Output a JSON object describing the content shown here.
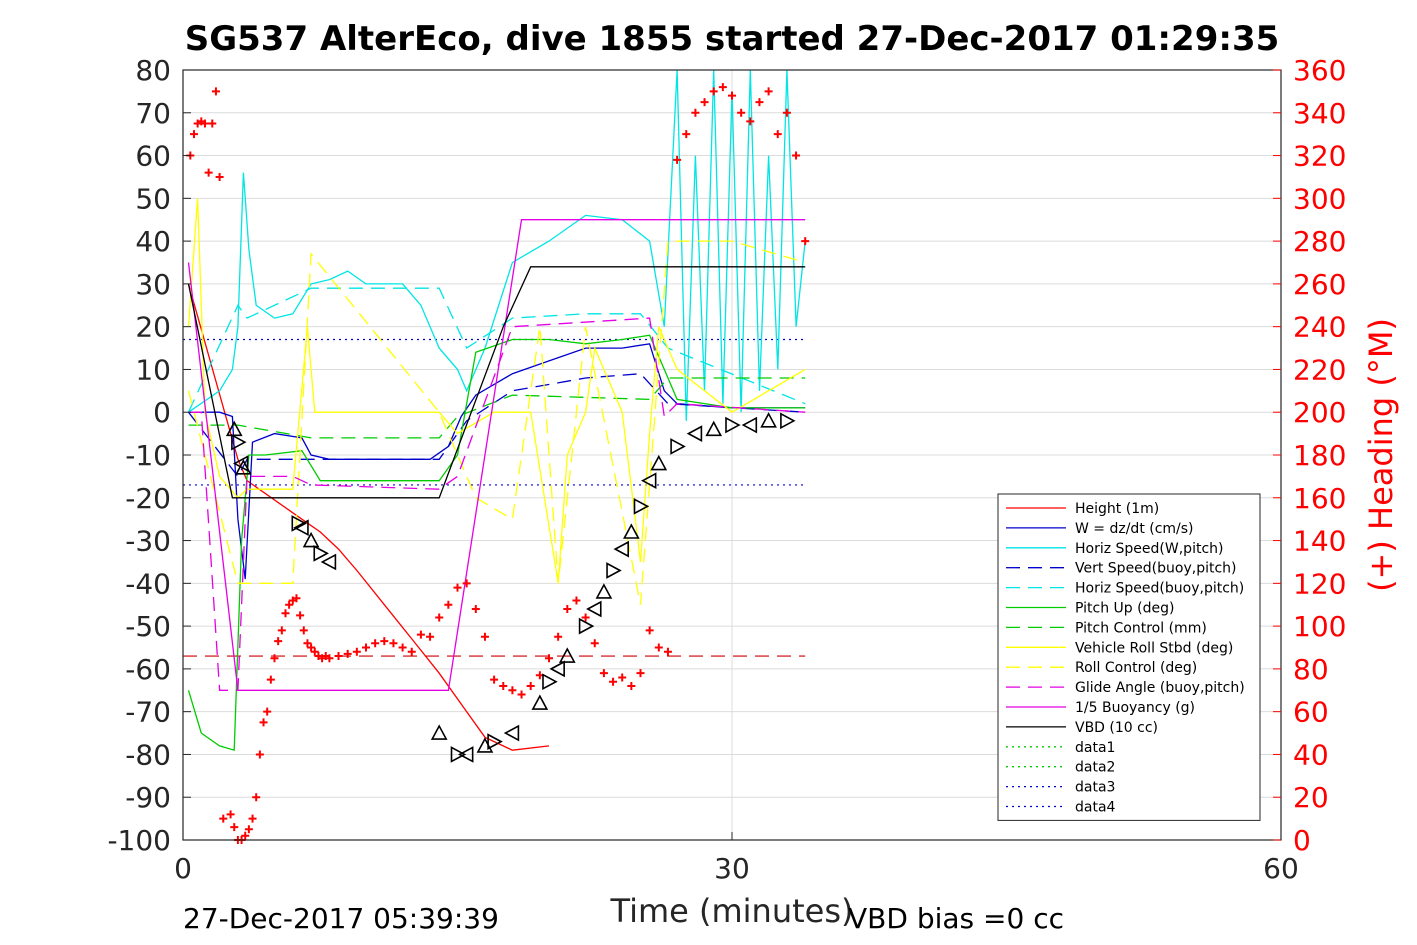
{
  "title": "SG537 AlterEco, dive 1855 started 27-Dec-2017 01:29:35",
  "footer_left": "27-Dec-2017 05:39:39",
  "footer_right": "VBD bias =0 cc",
  "chart_data": {
    "type": "line",
    "xlabel": "Time (minutes)",
    "ylabel_right": "(+) Heading (°M)",
    "xlim": [
      0,
      60
    ],
    "ylim_left": [
      -100,
      80
    ],
    "ylim_right": [
      0,
      360
    ],
    "x_ticks": [
      0,
      30,
      60
    ],
    "y_ticks_left": [
      80,
      70,
      60,
      50,
      40,
      30,
      20,
      10,
      0,
      -10,
      -20,
      -30,
      -40,
      -50,
      -60,
      -70,
      -80,
      -90,
      -100
    ],
    "y_ticks_right": [
      360,
      340,
      320,
      300,
      280,
      260,
      240,
      220,
      200,
      180,
      160,
      140,
      120,
      100,
      80,
      60,
      40,
      20,
      0
    ],
    "grid": true,
    "legend_position": "lower-right",
    "legend": [
      {
        "label": "Height (1m)",
        "color": "#ff0000",
        "style": "solid"
      },
      {
        "label": "W = dz/dt (cm/s)",
        "color": "#0000cc",
        "style": "solid"
      },
      {
        "label": "Horiz Speed(W,pitch)",
        "color": "#00e5e5",
        "style": "solid"
      },
      {
        "label": "Vert Speed(buoy,pitch)",
        "color": "#0000cc",
        "style": "dashed"
      },
      {
        "label": "Horiz Speed(buoy,pitch)",
        "color": "#00e5e5",
        "style": "dashed"
      },
      {
        "label": "Pitch Up (deg)",
        "color": "#00cc00",
        "style": "solid"
      },
      {
        "label": "Pitch Control (mm)",
        "color": "#00cc00",
        "style": "dashed"
      },
      {
        "label": "Vehicle Roll Stbd (deg)",
        "color": "#ffff00",
        "style": "solid"
      },
      {
        "label": "Roll Control (deg)",
        "color": "#ffff00",
        "style": "dashed"
      },
      {
        "label": "Glide Angle (buoy,pitch)",
        "color": "#e500e5",
        "style": "dashed"
      },
      {
        "label": "1/5 Buoyancy (g)",
        "color": "#e500e5",
        "style": "solid"
      },
      {
        "label": "VBD (10 cc)",
        "color": "#000000",
        "style": "solid"
      },
      {
        "label": "data1",
        "color": "#00cc00",
        "style": "dotted"
      },
      {
        "label": "data2",
        "color": "#00cc00",
        "style": "dotted"
      },
      {
        "label": "data3",
        "color": "#0000cc",
        "style": "dotted"
      },
      {
        "label": "data4",
        "color": "#0000cc",
        "style": "dotted"
      }
    ],
    "series": [
      {
        "name": "Height (1m)",
        "color": "#ff0000",
        "style": "solid",
        "x": [
          0.3,
          3.0,
          3.5,
          6.5,
          7.5,
          8.5,
          9.5,
          11,
          12.5,
          14,
          15.5,
          16.5,
          18,
          20
        ],
        "y": [
          30,
          -11,
          -16,
          -25,
          -28,
          -32,
          -37,
          -45,
          -53,
          -61,
          -70,
          -76,
          -79,
          -78
        ]
      },
      {
        "name": "W = dz/dt (cm/s)",
        "color": "#0000cc",
        "style": "solid",
        "x": [
          0.3,
          2.0,
          2.7,
          3.0,
          3.4,
          3.8,
          5.0,
          6.5,
          7.0,
          8.0,
          10,
          12,
          13.5,
          14.5,
          15.2,
          16,
          18,
          20,
          22,
          24,
          25.5,
          26.3,
          27,
          30,
          34
        ],
        "y": [
          0,
          0,
          -1,
          -25,
          -39,
          -7,
          -5,
          -6,
          -10,
          -11,
          -11,
          -11,
          -11,
          -8,
          -1,
          4,
          9,
          12,
          15,
          15,
          16,
          5,
          2,
          1,
          1
        ]
      },
      {
        "name": "Horiz Speed(W,pitch)",
        "color": "#00e5e5",
        "style": "solid",
        "x": [
          0.3,
          2.0,
          2.7,
          3.0,
          3.3,
          3.6,
          4.0,
          5.0,
          6.0,
          7.0,
          8.0,
          9.0,
          10,
          11,
          12,
          13,
          14,
          15,
          15.5,
          16.5,
          18,
          20,
          22,
          24,
          25.5,
          26.3,
          27,
          27.5,
          28,
          28.5,
          29,
          29.5,
          30,
          30.5,
          31,
          31.5,
          32,
          32.5,
          33,
          33.5,
          34
        ],
        "y": [
          0,
          5,
          10,
          20,
          56,
          38,
          25,
          22,
          23,
          30,
          31,
          33,
          30,
          30,
          30,
          25,
          15,
          10,
          5,
          15,
          35,
          40,
          46,
          45,
          40,
          20,
          80,
          -2,
          60,
          5,
          80,
          2,
          75,
          0,
          80,
          5,
          60,
          10,
          80,
          20,
          40
        ]
      },
      {
        "name": "Vert Speed(buoy,pitch)",
        "color": "#0000cc",
        "style": "dashed",
        "x": [
          0.3,
          3.0,
          3.5,
          7.0,
          14,
          15.5,
          18,
          22,
          25,
          26.5,
          34
        ],
        "y": [
          0,
          -15,
          -11,
          -11,
          -11,
          -2,
          5,
          8,
          9,
          2,
          0
        ]
      },
      {
        "name": "Horiz Speed(buoy,pitch)",
        "color": "#00e5e5",
        "style": "dashed",
        "x": [
          0.3,
          3.0,
          3.5,
          7.0,
          14,
          15.5,
          18,
          22,
          25,
          26.5,
          34
        ],
        "y": [
          0,
          25,
          22,
          29,
          29,
          15,
          22,
          23,
          23,
          15,
          2
        ]
      },
      {
        "name": "Pitch Up (deg)",
        "color": "#00cc00",
        "style": "solid",
        "x": [
          0.3,
          1.0,
          2.0,
          2.8,
          3.2,
          3.6,
          4.5,
          6.5,
          7.5,
          10,
          14,
          15,
          16,
          18,
          20,
          22,
          24,
          25.5,
          26.3,
          27,
          30,
          34
        ],
        "y": [
          -65,
          -75,
          -78,
          -79,
          -30,
          -10,
          -10,
          -9,
          -16,
          -16,
          -16,
          -10,
          14,
          17,
          17,
          16,
          17,
          18,
          10,
          3,
          1,
          1
        ]
      },
      {
        "name": "Pitch Control (mm)",
        "color": "#00cc00",
        "style": "dashed",
        "x": [
          0.3,
          3.0,
          7.0,
          14,
          15,
          18,
          25.5,
          26.5,
          34
        ],
        "y": [
          -3,
          -3,
          -6,
          -6,
          -1,
          4,
          3,
          8,
          8
        ]
      },
      {
        "name": "Vehicle Roll Stbd (deg)",
        "color": "#ffff00",
        "style": "solid",
        "x": [
          0.3,
          0.8,
          1.2,
          2.0,
          3.0,
          3.5,
          6.0,
          6.8,
          7.2,
          8.0,
          10,
          14,
          15,
          17,
          19,
          20.5,
          21,
          22,
          22.5,
          24,
          25,
          25.5,
          26,
          27,
          30,
          34
        ],
        "y": [
          20,
          50,
          0,
          -15,
          -20,
          -18,
          -18,
          20,
          0,
          0,
          0,
          0,
          -5,
          0,
          0,
          -40,
          -10,
          0,
          15,
          0,
          -35,
          -5,
          20,
          10,
          0,
          10
        ]
      },
      {
        "name": "Roll Control (deg)",
        "color": "#ffff00",
        "style": "dashed",
        "x": [
          0.3,
          3.0,
          4.0,
          6.0,
          7.0,
          14,
          16,
          18,
          19.5,
          20.5,
          22,
          25,
          26.5,
          27,
          30,
          34
        ],
        "y": [
          5,
          -40,
          -40,
          -40,
          37,
          0,
          -20,
          -25,
          20,
          -40,
          20,
          -45,
          40,
          40,
          40,
          35
        ]
      },
      {
        "name": "Glide Angle (buoy,pitch)",
        "color": "#e500e5",
        "style": "dashed",
        "x": [
          0.3,
          1.0,
          2.0,
          3.0,
          3.5,
          6.0,
          7.0,
          14,
          15,
          18,
          25.5,
          26.3,
          27,
          34
        ],
        "y": [
          0,
          0,
          -65,
          -65,
          -15,
          -15,
          -17,
          -18,
          -15,
          20,
          22,
          -1,
          2,
          0
        ]
      },
      {
        "name": "1/5 Buoyancy (g)",
        "color": "#e500e5",
        "style": "solid",
        "x": [
          0.3,
          3.0,
          13,
          14.5,
          18.5,
          34
        ],
        "y": [
          35,
          -65,
          -65,
          -65,
          45,
          45
        ]
      },
      {
        "name": "VBD (10 cc)",
        "color": "#000000",
        "style": "solid",
        "x": [
          0.3,
          2.7,
          14,
          17.5,
          19,
          34
        ],
        "y": [
          30,
          -20,
          -20,
          20,
          34,
          34
        ]
      }
    ],
    "reference_lines": [
      {
        "axis": "y",
        "value": 17,
        "color": "#0000cc",
        "style": "dotted"
      },
      {
        "axis": "y",
        "value": -17,
        "color": "#0000cc",
        "style": "dotted"
      },
      {
        "axis": "y",
        "value": -57,
        "color": "#cc0000",
        "style": "dashed"
      }
    ],
    "heading_points": {
      "axis": "right",
      "color": "#ff0000",
      "marker": "+",
      "x": [
        0.4,
        0.6,
        0.8,
        1.0,
        1.2,
        1.4,
        1.6,
        1.8,
        2.0,
        2.2,
        2.6,
        2.8,
        3.0,
        3.2,
        3.4,
        3.6,
        3.8,
        4.0,
        4.2,
        4.4,
        4.6,
        4.8,
        5.0,
        5.2,
        5.4,
        5.6,
        5.8,
        6.0,
        6.2,
        6.4,
        6.6,
        6.8,
        7.0,
        7.2,
        7.4,
        7.6,
        7.8,
        8.0,
        8.5,
        9.0,
        9.5,
        10,
        10.5,
        11,
        11.5,
        12,
        12.5,
        13,
        13.5,
        14,
        14.5,
        15,
        15.5,
        16,
        16.5,
        17,
        17.5,
        18,
        18.5,
        19,
        19.5,
        20,
        20.5,
        21,
        21.5,
        22,
        22.5,
        23,
        23.5,
        24,
        24.5,
        25,
        25.5,
        26,
        26.5,
        27,
        27.5,
        28,
        28.5,
        29,
        29.5,
        30,
        30.5,
        31,
        31.5,
        32,
        32.5,
        33,
        33.5,
        34
      ],
      "y": [
        320,
        330,
        335,
        336,
        335,
        312,
        335,
        350,
        310,
        10,
        12,
        6,
        0,
        0,
        2,
        5,
        10,
        20,
        40,
        55,
        60,
        75,
        85,
        93,
        98,
        106,
        110,
        112,
        113,
        105,
        98,
        92,
        90,
        88,
        86,
        85,
        86,
        85,
        86,
        87,
        88,
        90,
        92,
        93,
        92,
        90,
        88,
        96,
        95,
        104,
        110,
        118,
        120,
        108,
        95,
        75,
        72,
        70,
        68,
        72,
        77,
        85,
        95,
        108,
        112,
        104,
        92,
        78,
        74,
        76,
        72,
        78,
        98,
        90,
        88,
        318,
        330,
        340,
        345,
        350,
        352,
        348,
        340,
        336,
        345,
        350,
        330,
        340,
        320,
        280
      ]
    },
    "position_markers": {
      "color": "#000000",
      "marker": "triangle",
      "x": [
        2.8,
        3.0,
        3.2,
        3.3,
        6.3,
        6.5,
        7.0,
        7.5,
        8.0,
        14,
        15,
        15.5,
        16.5,
        17,
        18,
        19.5,
        20,
        20.5,
        21,
        22,
        22.5,
        23,
        23.5,
        24,
        24.5,
        25,
        25.5,
        26,
        27,
        28,
        29,
        30,
        31,
        32,
        33
      ],
      "y": [
        -4,
        -7,
        -12,
        -13,
        -26,
        -27,
        -30,
        -33,
        -35,
        -75,
        -80,
        -80,
        -78,
        -77,
        -75,
        -68,
        -63,
        -60,
        -57,
        -50,
        -46,
        -42,
        -37,
        -32,
        -28,
        -22,
        -16,
        -12,
        -8,
        -5,
        -4,
        -3,
        -3,
        -2,
        -2
      ]
    }
  }
}
